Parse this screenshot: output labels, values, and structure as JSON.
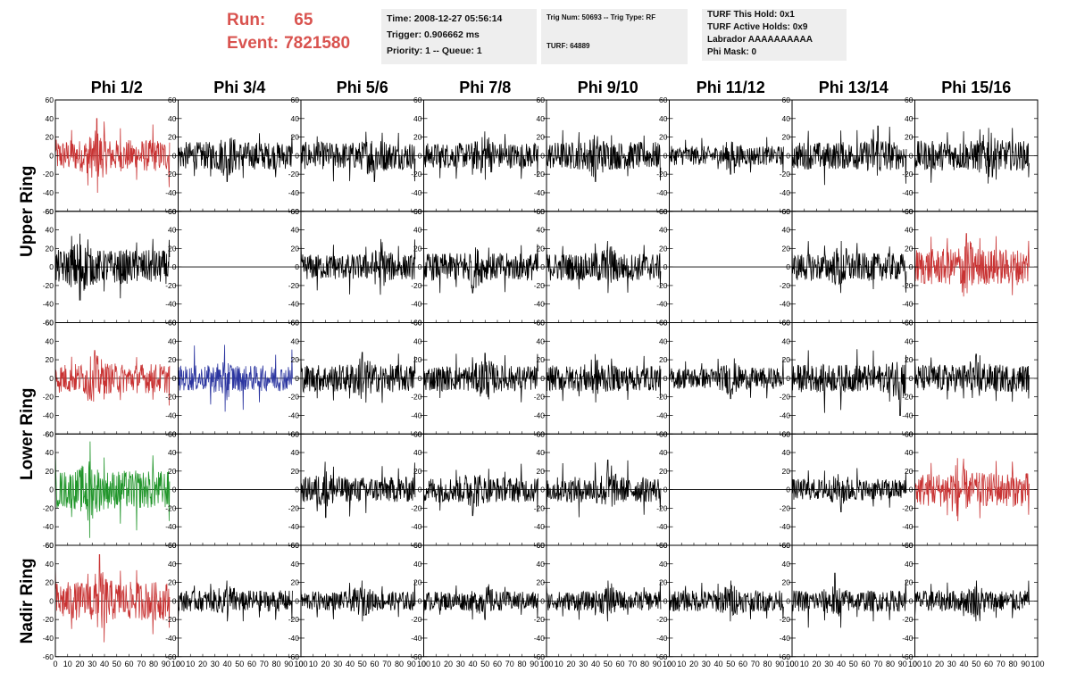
{
  "header": {
    "run_label": "Run:",
    "run_value": "65",
    "event_label": "Event:",
    "event_value": "7821580"
  },
  "info1": {
    "time": "Time: 2008-12-27 05:56:14",
    "trigger": "Trigger: 0.906662 ms",
    "priority": "Priority: 1 -- Queue: 1"
  },
  "info2": {
    "trig": "Trig Num: 50693 -- Trig Type: RF",
    "turf": "TURF: 64889"
  },
  "info3": {
    "this_hold": "TURF This Hold: 0x1",
    "active_holds": "TURF Active Holds: 0x9",
    "labrador": "Labrador AAAAAAAAAA",
    "phi_mask": "Phi Mask: 0"
  },
  "chart_data": {
    "type": "line",
    "columns": [
      "Phi 1/2",
      "Phi 3/4",
      "Phi 5/6",
      "Phi 7/8",
      "Phi 9/10",
      "Phi 11/12",
      "Phi 13/14",
      "Phi 15/16"
    ],
    "ring_labels": [
      {
        "text": "Upper Ring",
        "rows": [
          0,
          1
        ]
      },
      {
        "text": "Lower Ring",
        "rows": [
          2,
          3
        ]
      },
      {
        "text": "Nadir Ring",
        "rows": [
          4,
          4
        ]
      }
    ],
    "xlim": [
      0,
      100
    ],
    "ylim": [
      -60,
      60
    ],
    "x_ticks": [
      0,
      10,
      20,
      30,
      40,
      50,
      60,
      70,
      80,
      90,
      100
    ],
    "y_ticks": [
      60,
      40,
      20,
      0,
      -20,
      -40,
      -60
    ],
    "x_tick_labels": [
      "0",
      "10",
      "20",
      "30",
      "40",
      "50",
      "60",
      "70",
      "80",
      "90",
      "100"
    ],
    "y_tick_labels": [
      "60",
      "40",
      "20",
      "0",
      "-20",
      "-40",
      "-60"
    ],
    "colors": {
      "black": "#000000",
      "red": "#c83232",
      "blue": "#2b35a0",
      "green": "#20952a"
    },
    "waveforms": [
      [
        {
          "color": "red",
          "amp": 15,
          "peak": 40,
          "peak_x": 34
        },
        {
          "color": "black",
          "amp": 13,
          "peak": 28,
          "peak_x": 40
        },
        {
          "color": "black",
          "amp": 13,
          "peak": 28,
          "peak_x": 60
        },
        {
          "color": "black",
          "amp": 12,
          "peak": 26,
          "peak_x": 50
        },
        {
          "color": "black",
          "amp": 13,
          "peak": 28,
          "peak_x": 40
        },
        {
          "color": "black",
          "amp": 9,
          "peak": 20,
          "peak_x": 50
        },
        {
          "color": "black",
          "amp": 13,
          "peak": 32,
          "peak_x": 70
        },
        {
          "color": "black",
          "amp": 14,
          "peak": 30,
          "peak_x": 60
        }
      ],
      [
        {
          "color": "black",
          "amp": 16,
          "peak": 36,
          "peak_x": 20
        },
        {
          "color": "black",
          "amp": 0,
          "peak": 0,
          "peak_x": 0
        },
        {
          "color": "black",
          "amp": 12,
          "peak": 30,
          "peak_x": 65
        },
        {
          "color": "black",
          "amp": 13,
          "peak": 28,
          "peak_x": 40
        },
        {
          "color": "black",
          "amp": 13,
          "peak": 28,
          "peak_x": 50
        },
        {
          "color": "black",
          "amp": 0,
          "peak": 0,
          "peak_x": 0
        },
        {
          "color": "black",
          "amp": 13,
          "peak": 28,
          "peak_x": 40
        },
        {
          "color": "red",
          "amp": 17,
          "peak": 36,
          "peak_x": 42
        }
      ],
      [
        {
          "color": "red",
          "amp": 14,
          "peak": 30,
          "peak_x": 32
        },
        {
          "color": "blue",
          "amp": 12,
          "peak": 36,
          "peak_x": 38
        },
        {
          "color": "black",
          "amp": 13,
          "peak": 28,
          "peak_x": 50
        },
        {
          "color": "black",
          "amp": 12,
          "peak": 27,
          "peak_x": 50
        },
        {
          "color": "black",
          "amp": 12,
          "peak": 26,
          "peak_x": 40
        },
        {
          "color": "black",
          "amp": 10,
          "peak": 22,
          "peak_x": 50
        },
        {
          "color": "black",
          "amp": 13,
          "peak": 40,
          "peak_x": 88
        },
        {
          "color": "black",
          "amp": 13,
          "peak": 26,
          "peak_x": 50
        }
      ],
      [
        {
          "color": "green",
          "amp": 18,
          "peak": 52,
          "peak_x": 28
        },
        {
          "color": "black",
          "amp": 0,
          "peak": 0,
          "peak_x": 0
        },
        {
          "color": "black",
          "amp": 12,
          "peak": 30,
          "peak_x": 20
        },
        {
          "color": "black",
          "amp": 12,
          "peak": 28,
          "peak_x": 40
        },
        {
          "color": "black",
          "amp": 12,
          "peak": 32,
          "peak_x": 50
        },
        {
          "color": "black",
          "amp": 0,
          "peak": 0,
          "peak_x": 0
        },
        {
          "color": "black",
          "amp": 10,
          "peak": 24,
          "peak_x": 40
        },
        {
          "color": "red",
          "amp": 16,
          "peak": 34,
          "peak_x": 35
        }
      ],
      [
        {
          "color": "red",
          "amp": 18,
          "peak": 50,
          "peak_x": 36
        },
        {
          "color": "black",
          "amp": 10,
          "peak": 22,
          "peak_x": 40
        },
        {
          "color": "black",
          "amp": 9,
          "peak": 22,
          "peak_x": 50
        },
        {
          "color": "black",
          "amp": 9,
          "peak": 20,
          "peak_x": 50
        },
        {
          "color": "black",
          "amp": 9,
          "peak": 22,
          "peak_x": 50
        },
        {
          "color": "black",
          "amp": 10,
          "peak": 22,
          "peak_x": 50
        },
        {
          "color": "black",
          "amp": 10,
          "peak": 30,
          "peak_x": 35
        },
        {
          "color": "black",
          "amp": 10,
          "peak": 22,
          "peak_x": 50
        }
      ]
    ]
  }
}
